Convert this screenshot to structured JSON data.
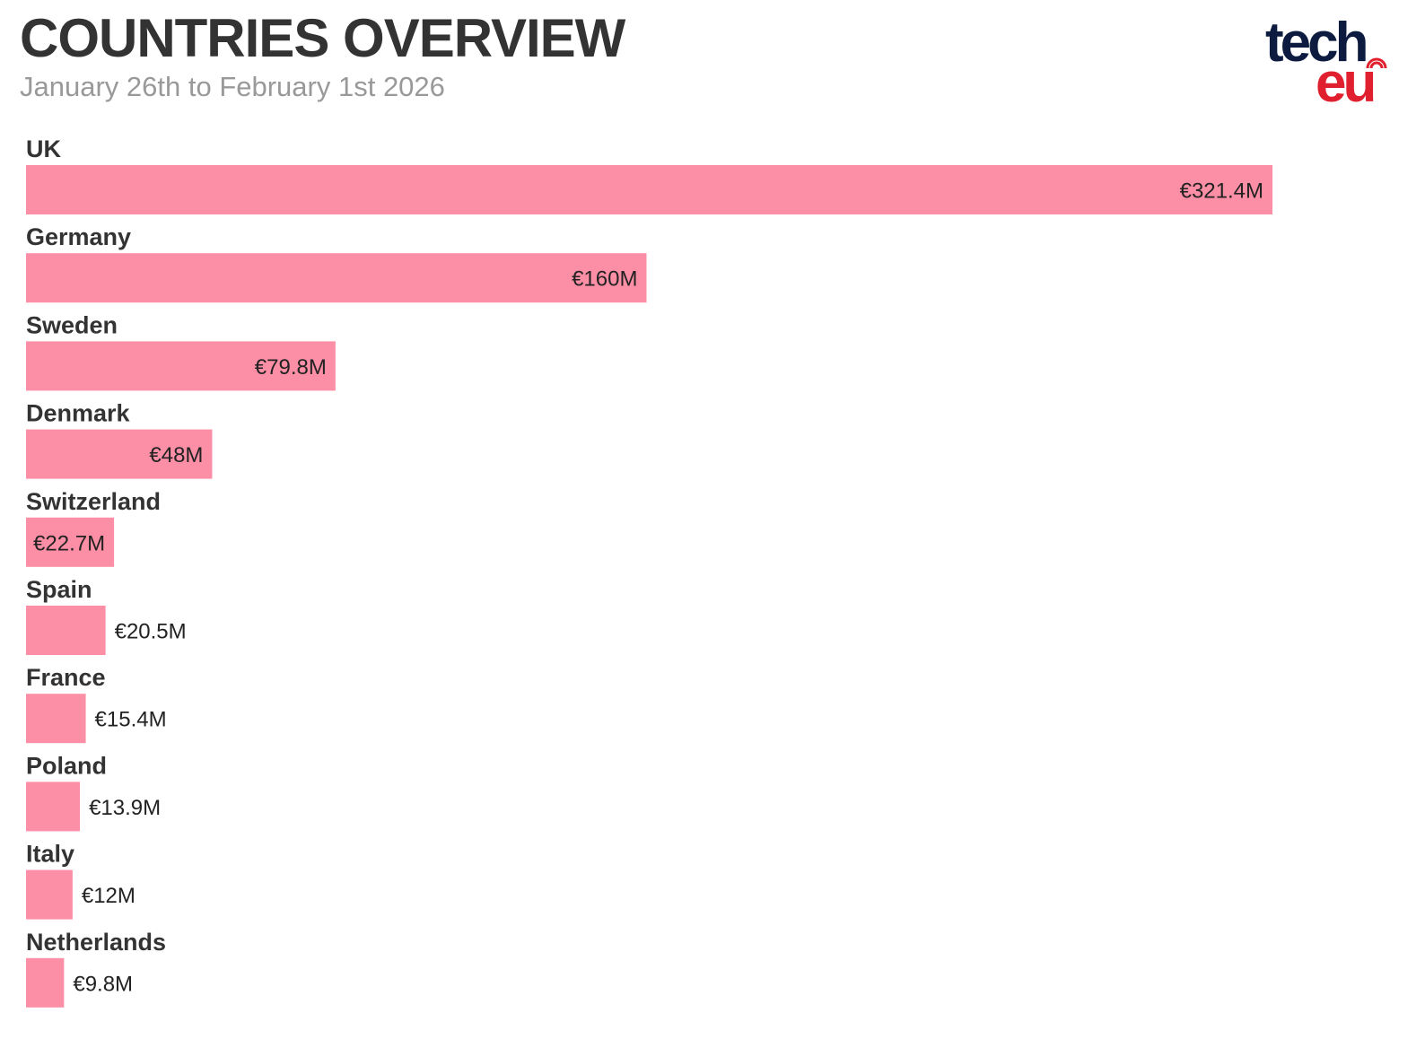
{
  "header": {
    "title": "COUNTRIES OVERVIEW",
    "subtitle": "January 26th to February 1st 2026"
  },
  "logo": {
    "line1": "tech",
    "line2": "eu",
    "colors": {
      "tech": "#0d1b40",
      "eu": "#e0202e"
    }
  },
  "colors": {
    "bar": "#fc8fa6",
    "label": "#333333",
    "value": "#222222"
  },
  "chart_data": {
    "type": "bar",
    "orientation": "horizontal",
    "title": "COUNTRIES OVERVIEW",
    "subtitle": "January 26th to February 1st 2026",
    "unit": "€M",
    "categories": [
      "UK",
      "Germany",
      "Sweden",
      "Denmark",
      "Switzerland",
      "Spain",
      "France",
      "Poland",
      "Italy",
      "Netherlands"
    ],
    "values": [
      321.4,
      160,
      79.8,
      48,
      22.7,
      20.5,
      15.4,
      13.9,
      12,
      9.8
    ],
    "value_labels": [
      "€321.4M",
      "€160M",
      "€79.8M",
      "€48M",
      "€22.7M",
      "€20.5M",
      "€15.4M",
      "€13.9M",
      "€12M",
      "€9.8M"
    ],
    "xlim": [
      0,
      321.4
    ],
    "grid": false,
    "legend": "none"
  }
}
